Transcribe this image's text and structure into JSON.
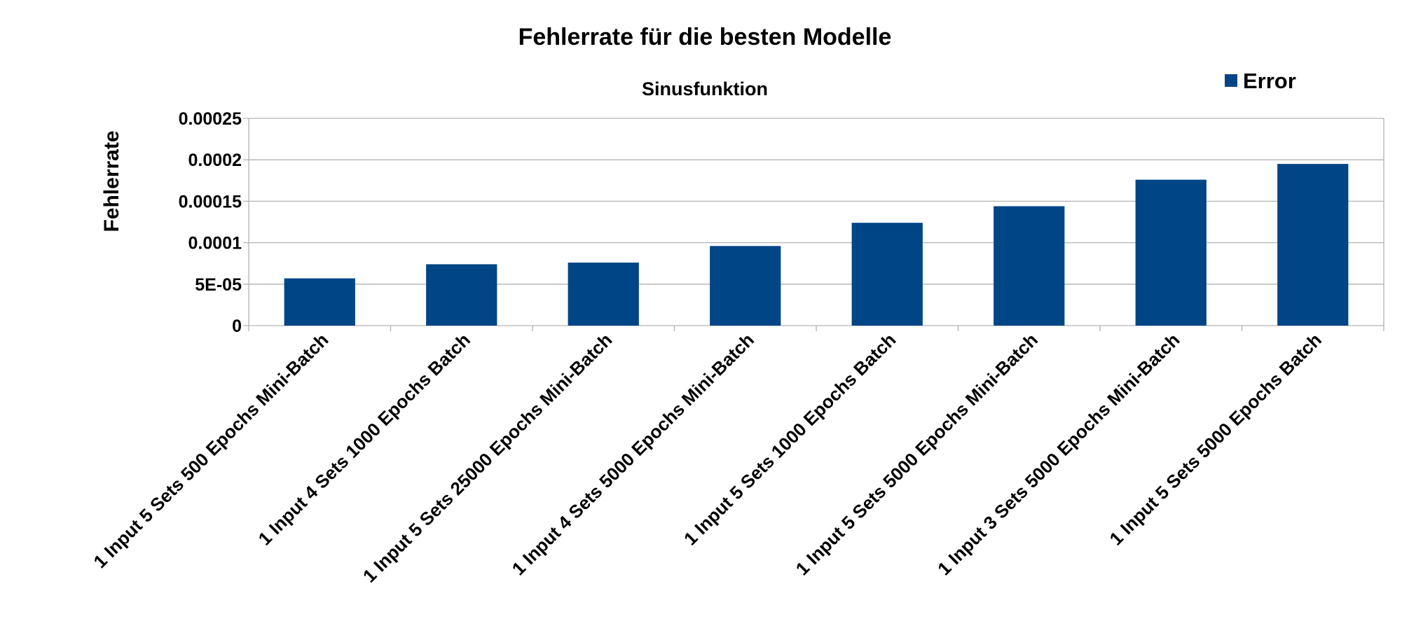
{
  "chart_data": {
    "type": "bar",
    "title": "Fehlerrate für die besten Modelle",
    "subtitle": "Sinusfunktion",
    "xlabel": "",
    "ylabel": "Fehlerrate",
    "ylim": [
      0,
      0.00025
    ],
    "yticks": [
      0,
      5e-05,
      0.0001,
      0.00015,
      0.0002,
      0.00025
    ],
    "ytick_labels": [
      "0",
      "5E-05",
      "0.0001",
      "0.00015",
      "0.0002",
      "0.00025"
    ],
    "grid": true,
    "legend_position": "top-right",
    "categories": [
      "1 Input 5 Sets 500 Epochs Mini-Batch",
      "1 Input 4 Sets 1000 Epochs Batch",
      "1 Input 5 Sets 25000 Epochs Mini-Batch",
      "1 Input 4 Sets 5000 Epochs Mini-Batch",
      "1 Input 5 Sets 1000 Epochs Batch",
      "1 Input 5 Sets 5000 Epochs Mini-Batch",
      "1 Input 3 Sets 5000 Epochs Mini-Batch",
      "1 Input 5 Sets 5000 Epochs Batch"
    ],
    "series": [
      {
        "name": "Error",
        "color": "#004586",
        "values": [
          5.7e-05,
          7.4e-05,
          7.6e-05,
          9.6e-05,
          0.000124,
          0.000144,
          0.000176,
          0.000195
        ]
      }
    ]
  }
}
